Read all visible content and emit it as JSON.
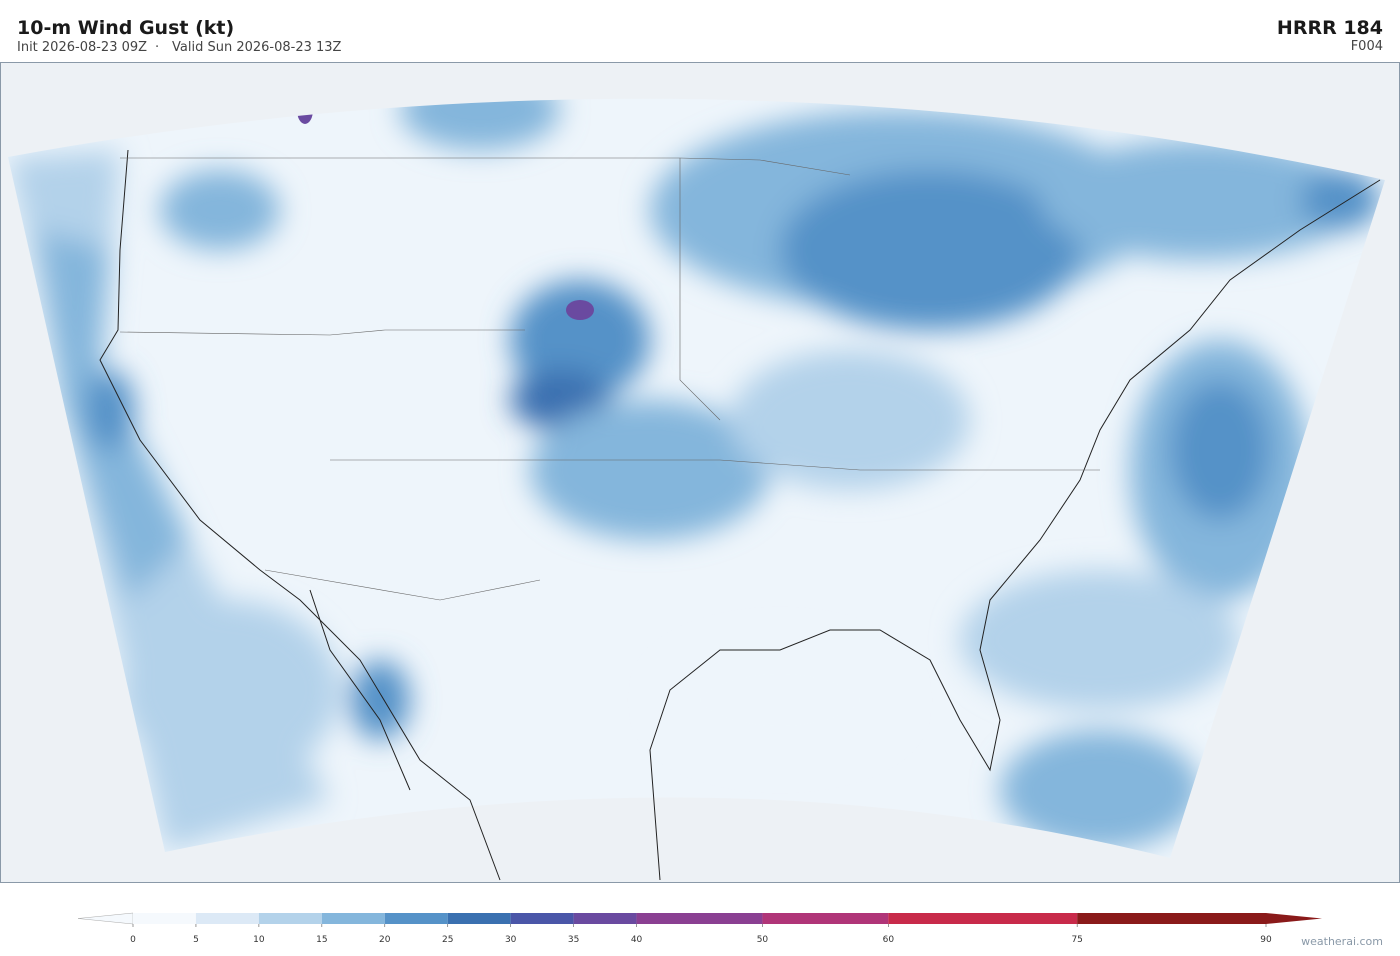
{
  "header": {
    "title": "10-m Wind Gust  (kt)",
    "init": "Init 2026-08-23 09Z",
    "separator": "·",
    "valid": "Valid Sun 2026-08-23 13Z",
    "model": "HRRR  184",
    "forecast": "F004"
  },
  "colorbar": {
    "levels": [
      0,
      5,
      10,
      15,
      20,
      25,
      30,
      35,
      40,
      50,
      60,
      75,
      90
    ],
    "colors": [
      "#f5f9fd",
      "#dce9f6",
      "#b3d2ea",
      "#84b6dc",
      "#5592c8",
      "#3a70b0",
      "#4a56a8",
      "#6a4aa0",
      "#8a3f92",
      "#b03578",
      "#c82a4a",
      "#8a1a1a"
    ]
  },
  "credit": "weatherai.com"
}
